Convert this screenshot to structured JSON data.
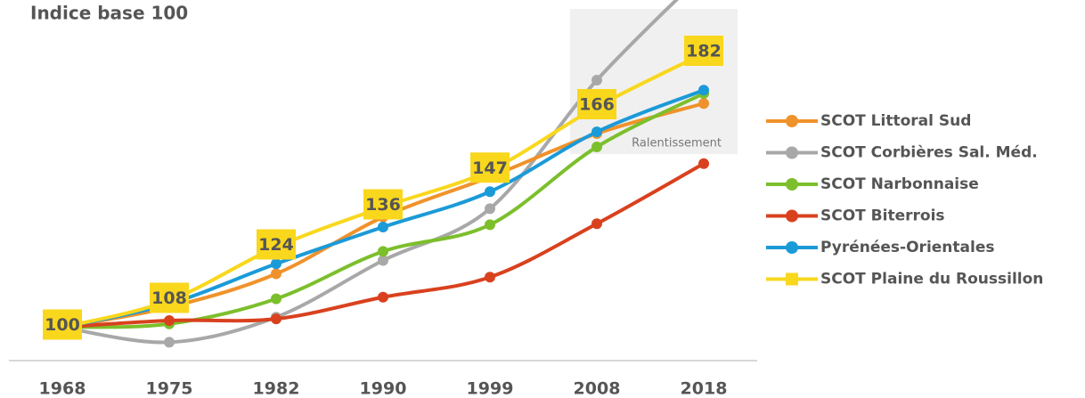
{
  "chart_data": {
    "type": "line",
    "title": "Indice base 100",
    "categories": [
      "1968",
      "1975",
      "1982",
      "1990",
      "1999",
      "2008",
      "2018"
    ],
    "ylim": [
      90,
      198
    ],
    "annotation": "Ralentissement",
    "series": [
      {
        "name": "SCOT Littoral Sud",
        "color": "#f0922b",
        "values": [
          100,
          106,
          116,
          133,
          145,
          158,
          167
        ]
      },
      {
        "name": "SCOT Corbières Sal. Méd.",
        "color": "#a8a8a8",
        "values": [
          100,
          95.5,
          103,
          120,
          135.5,
          174,
          206
        ]
      },
      {
        "name": "SCOT Narbonnaise",
        "color": "#7cbf2c",
        "values": [
          100,
          101,
          108.5,
          122.7,
          130.7,
          154,
          170
        ]
      },
      {
        "name": "SCOT Biterrois",
        "color": "#d9411e",
        "values": [
          100,
          102,
          102.5,
          109,
          115,
          131,
          149
        ]
      },
      {
        "name": "Pyrénées-Orientales",
        "color": "#1b9ad8",
        "values": [
          100,
          107,
          119,
          130,
          140.6,
          158.5,
          171
        ]
      },
      {
        "name": "SCOT Plaine du Roussillon",
        "color": "#f9d71c",
        "values": [
          100,
          108,
          124,
          136,
          147,
          166,
          182
        ],
        "data_labels": true
      }
    ]
  }
}
